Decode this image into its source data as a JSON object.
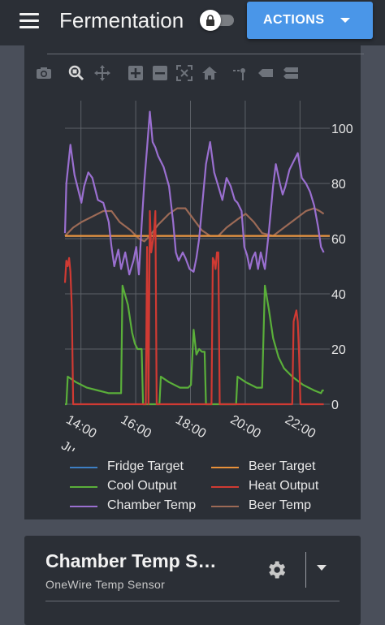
{
  "header": {
    "title": "Fermentation",
    "actions_label": "ACTIONS",
    "lock_icon": "lock-icon",
    "menu_icon": "hamburger-menu-icon"
  },
  "modebar": {
    "icons": [
      "camera-icon",
      "zoom-icon",
      "pan-icon",
      "zoom-in-icon",
      "zoom-out-icon",
      "autoscale-icon",
      "reset-axes-icon",
      "spike-lines-icon",
      "hover-closest-icon",
      "hover-compare-icon"
    ]
  },
  "colors": {
    "fridge_target": "#3d7fc4",
    "beer_target": "#e8913a",
    "cool_output": "#5aaf3a",
    "heat_output": "#d03a33",
    "chamber_temp": "#9a6fd0",
    "beer_temp": "#9c6a56",
    "accent": "#4a96e8"
  },
  "chart_data": {
    "type": "line",
    "x_ticks": [
      "14:00",
      "16:00",
      "18:00",
      "20:00",
      "22:00"
    ],
    "x_subtick": "Ju",
    "y_ticks": [
      "0",
      "20",
      "40",
      "60",
      "80",
      "100"
    ],
    "ylim": [
      0,
      110
    ],
    "xlim": [
      "13:25",
      "23:05"
    ],
    "grid": true,
    "legend_placement": "bottom",
    "series": [
      {
        "name": "Fridge Target",
        "color": "#3d7fc4",
        "points": [
          [
            0,
            61
          ],
          [
            9.67,
            61
          ]
        ]
      },
      {
        "name": "Beer Target",
        "color": "#e8913a",
        "points": [
          [
            0,
            61
          ],
          [
            9.67,
            61
          ]
        ]
      },
      {
        "name": "Chamber Temp",
        "color": "#9a6fd0",
        "points": [
          [
            0,
            62
          ],
          [
            0.05,
            80
          ],
          [
            0.2,
            94
          ],
          [
            0.35,
            83
          ],
          [
            0.5,
            77
          ],
          [
            0.6,
            73
          ],
          [
            0.7,
            79
          ],
          [
            0.85,
            84
          ],
          [
            1.0,
            82
          ],
          [
            1.2,
            74
          ],
          [
            1.4,
            73
          ],
          [
            1.6,
            66
          ],
          [
            1.7,
            57
          ],
          [
            1.8,
            50
          ],
          [
            1.95,
            56
          ],
          [
            2.05,
            49
          ],
          [
            2.2,
            55
          ],
          [
            2.35,
            47
          ],
          [
            2.5,
            52
          ],
          [
            2.6,
            57
          ],
          [
            2.7,
            47
          ],
          [
            2.8,
            65
          ],
          [
            2.9,
            81
          ],
          [
            3.0,
            93
          ],
          [
            3.1,
            106
          ],
          [
            3.2,
            95
          ],
          [
            3.3,
            93
          ],
          [
            3.4,
            90
          ],
          [
            3.6,
            86
          ],
          [
            3.8,
            79
          ],
          [
            3.95,
            66
          ],
          [
            4.05,
            55
          ],
          [
            4.15,
            52
          ],
          [
            4.3,
            55
          ],
          [
            4.4,
            53
          ],
          [
            4.55,
            49
          ],
          [
            4.7,
            48
          ],
          [
            4.8,
            53
          ],
          [
            4.9,
            60
          ],
          [
            5.0,
            71
          ],
          [
            5.15,
            87
          ],
          [
            5.3,
            95
          ],
          [
            5.45,
            84
          ],
          [
            5.6,
            79
          ],
          [
            5.75,
            74
          ],
          [
            5.9,
            82
          ],
          [
            6.05,
            79
          ],
          [
            6.2,
            74
          ],
          [
            6.3,
            73
          ],
          [
            6.45,
            70
          ],
          [
            6.55,
            57
          ],
          [
            6.65,
            54
          ],
          [
            6.75,
            49
          ],
          [
            6.85,
            53
          ],
          [
            6.95,
            55
          ],
          [
            7.05,
            49
          ],
          [
            7.15,
            55
          ],
          [
            7.3,
            49
          ],
          [
            7.45,
            63
          ],
          [
            7.6,
            79
          ],
          [
            7.7,
            87
          ],
          [
            7.85,
            80
          ],
          [
            7.95,
            76
          ],
          [
            8.05,
            79
          ],
          [
            8.2,
            85
          ],
          [
            8.35,
            88
          ],
          [
            8.5,
            91
          ],
          [
            8.65,
            82
          ],
          [
            8.8,
            80
          ],
          [
            8.95,
            77
          ],
          [
            9.1,
            72
          ],
          [
            9.25,
            64
          ],
          [
            9.35,
            57
          ],
          [
            9.45,
            55
          ]
        ]
      },
      {
        "name": "Beer Temp",
        "color": "#9c6a56",
        "points": [
          [
            0,
            61
          ],
          [
            0.3,
            64
          ],
          [
            0.6,
            66
          ],
          [
            1.0,
            68
          ],
          [
            1.4,
            70
          ],
          [
            1.7,
            70
          ],
          [
            2.0,
            66
          ],
          [
            2.4,
            63
          ],
          [
            2.7,
            60
          ],
          [
            2.9,
            59
          ],
          [
            3.1,
            61
          ],
          [
            3.4,
            65
          ],
          [
            3.8,
            69
          ],
          [
            4.1,
            71
          ],
          [
            4.4,
            71
          ],
          [
            4.7,
            67
          ],
          [
            5.0,
            63
          ],
          [
            5.3,
            61
          ],
          [
            5.6,
            61
          ],
          [
            5.9,
            64
          ],
          [
            6.3,
            67
          ],
          [
            6.6,
            69
          ],
          [
            6.9,
            66
          ],
          [
            7.2,
            62
          ],
          [
            7.6,
            61
          ],
          [
            8.0,
            64
          ],
          [
            8.4,
            67
          ],
          [
            8.8,
            70
          ],
          [
            9.1,
            71
          ],
          [
            9.3,
            70
          ],
          [
            9.45,
            69
          ]
        ]
      },
      {
        "name": "Cool Output",
        "color": "#5aaf3a",
        "points": [
          [
            0,
            0
          ],
          [
            0.05,
            0
          ],
          [
            0.1,
            10
          ],
          [
            0.4,
            8
          ],
          [
            0.8,
            6
          ],
          [
            1.2,
            5
          ],
          [
            1.6,
            4
          ],
          [
            2.0,
            4
          ],
          [
            2.05,
            4
          ],
          [
            2.1,
            43
          ],
          [
            2.3,
            36
          ],
          [
            2.45,
            26
          ],
          [
            2.55,
            22
          ],
          [
            2.65,
            20
          ],
          [
            2.8,
            20
          ],
          [
            2.85,
            0
          ],
          [
            3.45,
            0
          ],
          [
            3.5,
            10
          ],
          [
            3.8,
            8
          ],
          [
            4.2,
            6
          ],
          [
            4.5,
            6
          ],
          [
            4.6,
            7
          ],
          [
            4.7,
            27
          ],
          [
            4.8,
            18
          ],
          [
            4.9,
            20
          ],
          [
            5.0,
            19
          ],
          [
            5.1,
            19
          ],
          [
            5.15,
            0
          ],
          [
            5.7,
            0
          ],
          [
            5.75,
            0
          ],
          [
            5.8,
            0
          ],
          [
            6.25,
            0
          ],
          [
            6.3,
            10
          ],
          [
            6.6,
            8
          ],
          [
            7.0,
            6
          ],
          [
            7.2,
            6
          ],
          [
            7.3,
            43
          ],
          [
            7.45,
            34
          ],
          [
            7.6,
            24
          ],
          [
            7.8,
            17
          ],
          [
            8.0,
            13
          ],
          [
            8.3,
            10
          ],
          [
            8.7,
            7
          ],
          [
            9.1,
            5
          ],
          [
            9.35,
            4
          ],
          [
            9.4,
            5
          ],
          [
            9.45,
            5
          ]
        ]
      },
      {
        "name": "Heat Output",
        "color": "#d03a33",
        "points": [
          [
            0,
            44
          ],
          [
            0.05,
            52
          ],
          [
            0.1,
            50
          ],
          [
            0.15,
            53
          ],
          [
            0.2,
            48
          ],
          [
            0.25,
            35
          ],
          [
            0.3,
            0
          ],
          [
            2.95,
            0
          ],
          [
            3.0,
            57
          ],
          [
            3.05,
            0
          ],
          [
            3.1,
            70
          ],
          [
            3.15,
            55
          ],
          [
            3.25,
            62
          ],
          [
            3.3,
            70
          ],
          [
            3.35,
            0
          ],
          [
            5.35,
            0
          ],
          [
            5.4,
            53
          ],
          [
            5.45,
            52
          ],
          [
            5.5,
            49
          ],
          [
            5.55,
            55
          ],
          [
            5.6,
            55
          ],
          [
            5.65,
            0
          ],
          [
            8.3,
            0
          ],
          [
            8.35,
            30
          ],
          [
            8.45,
            34
          ],
          [
            8.5,
            30
          ],
          [
            8.55,
            18
          ],
          [
            8.6,
            0
          ],
          [
            9.45,
            0
          ]
        ]
      }
    ]
  },
  "legend": [
    {
      "label": "Fridge Target",
      "color": "#3d7fc4"
    },
    {
      "label": "Beer Target",
      "color": "#e8913a"
    },
    {
      "label": "Cool Output",
      "color": "#5aaf3a"
    },
    {
      "label": "Heat Output",
      "color": "#d03a33"
    },
    {
      "label": "Chamber Temp",
      "color": "#9a6fd0"
    },
    {
      "label": "Beer Temp",
      "color": "#9c6a56"
    }
  ],
  "sensor_card": {
    "title": "Chamber Temp S…",
    "subtitle": "OneWire Temp Sensor",
    "settings_icon": "gear-icon"
  }
}
